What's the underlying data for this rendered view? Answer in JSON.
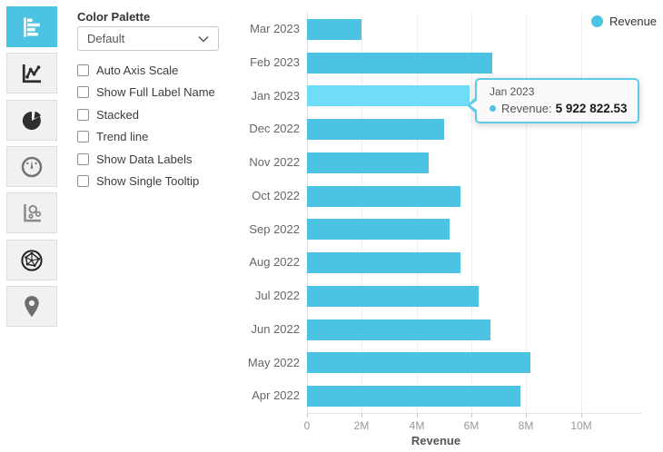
{
  "sidebar": {
    "items": [
      {
        "id": "horizontal-bar-chart",
        "selected": true
      },
      {
        "id": "line-chart",
        "selected": false
      },
      {
        "id": "pie-chart",
        "selected": false
      },
      {
        "id": "gauge-chart",
        "selected": false
      },
      {
        "id": "scatter-chart",
        "selected": false
      },
      {
        "id": "radar-chart",
        "selected": false
      },
      {
        "id": "map-chart",
        "selected": false
      }
    ]
  },
  "controls": {
    "color_palette_label": "Color Palette",
    "color_palette_value": "Default",
    "checkboxes": [
      {
        "label": "Auto Axis Scale",
        "checked": false
      },
      {
        "label": "Show Full Label Name",
        "checked": false
      },
      {
        "label": "Stacked",
        "checked": false
      },
      {
        "label": "Trend line",
        "checked": false
      },
      {
        "label": "Show Data Labels",
        "checked": false
      },
      {
        "label": "Show Single Tooltip",
        "checked": false
      }
    ]
  },
  "legend": {
    "label": "Revenue",
    "color": "#4cc3e2"
  },
  "tooltip": {
    "title": "Jan 2023",
    "series_label": "Revenue:",
    "value": "5 922 822.53"
  },
  "chart_data": {
    "type": "bar",
    "orientation": "horizontal",
    "title": "",
    "xlabel": "Revenue",
    "series_name": "Revenue",
    "categories": [
      "Mar 2023",
      "Feb 2023",
      "Jan 2023",
      "Dec 2022",
      "Nov 2022",
      "Oct 2022",
      "Sep 2022",
      "Aug 2022",
      "Jul 2022",
      "Jun 2022",
      "May 2022",
      "Apr 2022"
    ],
    "values": [
      2000000,
      6750000,
      5922822.53,
      5000000,
      4450000,
      5600000,
      5200000,
      5600000,
      6250000,
      6700000,
      8150000,
      7800000
    ],
    "highlighted_category": "Jan 2023",
    "x_ticks": [
      "0",
      "2M",
      "4M",
      "6M",
      "8M",
      "10M"
    ],
    "xlim": [
      0,
      12000000
    ],
    "grid": true,
    "legend_position": "top-right",
    "bar_color": "#4cc3e2",
    "highlight_color": "#6fddf8"
  }
}
